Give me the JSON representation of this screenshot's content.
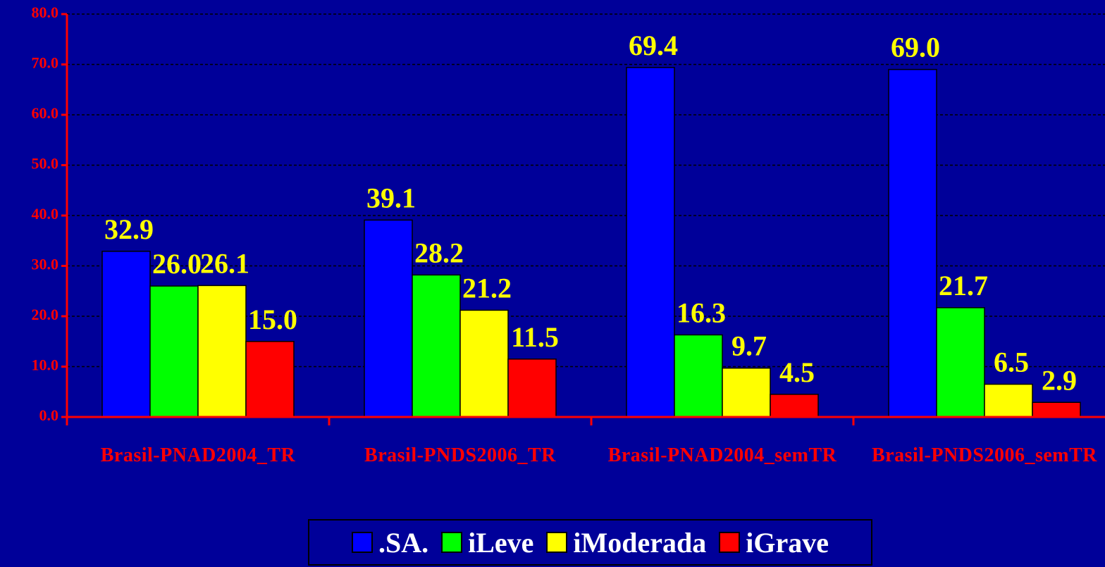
{
  "chart_data": {
    "type": "bar",
    "categories": [
      "Brasil-PNAD2004_TR",
      "Brasil-PNDS2006_TR",
      "Brasil-PNAD2004_semTR",
      "Brasil-PNDS2006_semTR"
    ],
    "series": [
      {
        "name": ".SA.",
        "color": "#0000ff",
        "values": [
          32.9,
          39.1,
          69.4,
          69.0
        ],
        "value_labels": [
          "32.9",
          "39.1",
          "69.4",
          "69.0"
        ]
      },
      {
        "name": "iLeve",
        "color": "#00ff00",
        "values": [
          26.0,
          28.2,
          16.3,
          21.7
        ],
        "value_labels": [
          "26.0",
          "28.2",
          "16.3",
          "21.7"
        ]
      },
      {
        "name": "iModerada",
        "color": "#ffff00",
        "values": [
          26.1,
          21.2,
          9.7,
          6.5
        ],
        "value_labels": [
          "26.1",
          "21.2",
          "9.7",
          "6.5"
        ]
      },
      {
        "name": "iGrave",
        "color": "#ff0000",
        "values": [
          15.0,
          11.5,
          4.5,
          2.9
        ],
        "value_labels": [
          "15.0",
          "11.5",
          "4.5",
          "2.9"
        ]
      }
    ],
    "ylim": [
      0,
      80
    ],
    "yticks": [
      {
        "value": 0,
        "label": "0.0"
      },
      {
        "value": 10,
        "label": "10.0"
      },
      {
        "value": 20,
        "label": "20.0"
      },
      {
        "value": 30,
        "label": "30.0"
      },
      {
        "value": 40,
        "label": "40.0"
      },
      {
        "value": 50,
        "label": "50.0"
      },
      {
        "value": 60,
        "label": "60.0"
      },
      {
        "value": 70,
        "label": "70.0"
      },
      {
        "value": 80,
        "label": "80.0"
      }
    ],
    "grid": true,
    "legend": "bottom"
  }
}
